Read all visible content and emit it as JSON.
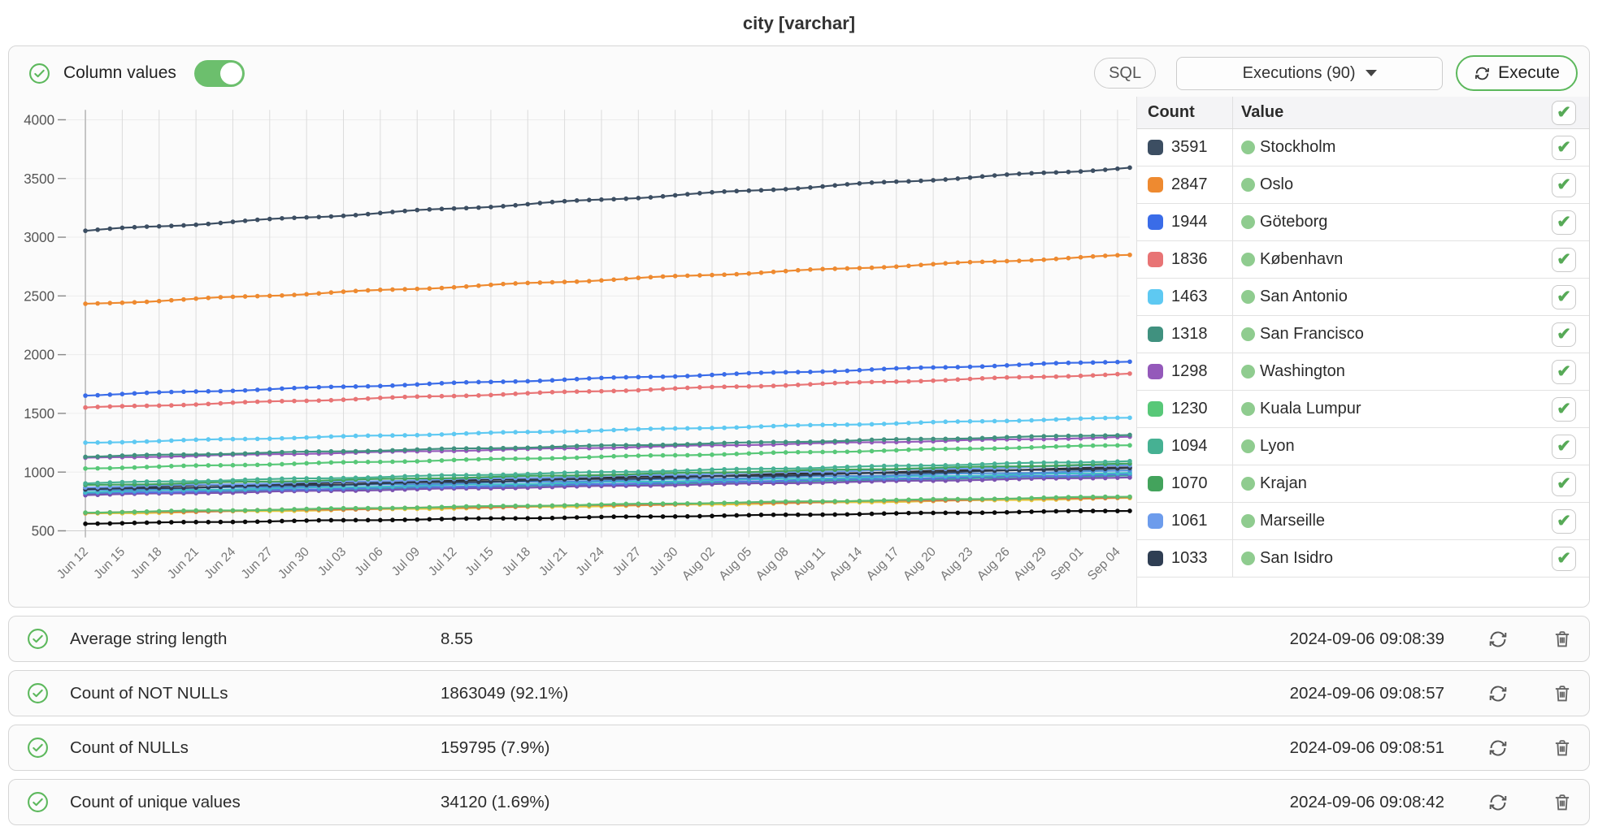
{
  "page_title": "city [varchar]",
  "panel": {
    "header": {
      "title": "Column values",
      "toggle_on": true
    },
    "buttons": {
      "sql": "SQL",
      "executions": "Executions (90)",
      "execute": "Execute"
    }
  },
  "legend": {
    "headers": {
      "count": "Count",
      "value": "Value"
    },
    "header_checkbox_checked": true,
    "rows": [
      {
        "count": 3591,
        "value": "Stockholm",
        "color": "#3c4e62",
        "checked": true
      },
      {
        "count": 2847,
        "value": "Oslo",
        "color": "#ee8a30",
        "checked": true
      },
      {
        "count": 1944,
        "value": "Göteborg",
        "color": "#3a6ce8",
        "checked": true
      },
      {
        "count": 1836,
        "value": "København",
        "color": "#e87475",
        "checked": true
      },
      {
        "count": 1463,
        "value": "San Antonio",
        "color": "#5ec9f2",
        "checked": true
      },
      {
        "count": 1318,
        "value": "San Francisco",
        "color": "#40917f",
        "checked": true
      },
      {
        "count": 1298,
        "value": "Washington",
        "color": "#9459ba",
        "checked": true
      },
      {
        "count": 1230,
        "value": "Kuala Lumpur",
        "color": "#58c878",
        "checked": true
      },
      {
        "count": 1094,
        "value": "Lyon",
        "color": "#46b193",
        "checked": true
      },
      {
        "count": 1070,
        "value": "Krajan",
        "color": "#43a35c",
        "checked": true
      },
      {
        "count": 1061,
        "value": "Marseille",
        "color": "#6d9cec",
        "checked": true
      },
      {
        "count": 1033,
        "value": "San Isidro",
        "color": "#2f3e53",
        "checked": true
      }
    ]
  },
  "chart_data": {
    "type": "line",
    "title": "",
    "xlabel": "",
    "ylabel": "",
    "ylim": [
      500,
      4000
    ],
    "y_ticks": [
      500,
      1000,
      1500,
      2000,
      2500,
      3000,
      3500,
      4000
    ],
    "grid": true,
    "markers": true,
    "legend_position": "right",
    "x_tick_labels": [
      "Jun 12",
      "Jun 15",
      "Jun 18",
      "Jun 21",
      "Jun 24",
      "Jun 27",
      "Jun 30",
      "Jul 03",
      "Jul 06",
      "Jul 09",
      "Jul 12",
      "Jul 15",
      "Jul 18",
      "Jul 21",
      "Jul 24",
      "Jul 27",
      "Jul 30",
      "Aug 02",
      "Aug 05",
      "Aug 08",
      "Aug 11",
      "Aug 14",
      "Aug 17",
      "Aug 20",
      "Aug 23",
      "Aug 26",
      "Aug 29",
      "Sep 01",
      "Sep 04"
    ],
    "ticks_every_n_points": 3,
    "points_per_series": 86,
    "series_note": "daily execution counts rising roughly linearly from start to end value",
    "series": [
      {
        "name": "Stockholm",
        "color": "#3c4e62",
        "start": 3055,
        "end": 3591
      },
      {
        "name": "Oslo",
        "color": "#ee8a30",
        "start": 2430,
        "end": 2847
      },
      {
        "name": "Göteborg",
        "color": "#3a6ce8",
        "start": 1655,
        "end": 1944
      },
      {
        "name": "København",
        "color": "#e87475",
        "start": 1548,
        "end": 1836
      },
      {
        "name": "San Antonio",
        "color": "#5ec9f2",
        "start": 1250,
        "end": 1463
      },
      {
        "name": "San Francisco",
        "color": "#40917f",
        "start": 1132,
        "end": 1318
      },
      {
        "name": "Washington",
        "color": "#9459ba",
        "start": 1120,
        "end": 1298
      },
      {
        "name": "Kuala Lumpur",
        "color": "#58c878",
        "start": 1032,
        "end": 1230
      },
      {
        "name": "Lyon",
        "color": "#46b193",
        "start": 905,
        "end": 1094
      },
      {
        "name": "Krajan",
        "color": "#43a35c",
        "start": 888,
        "end": 1070
      },
      {
        "name": "Marseille",
        "color": "#6d9cec",
        "start": 872,
        "end": 1061
      },
      {
        "name": "San Isidro",
        "color": "#2f3e53",
        "start": 852,
        "end": 1033
      },
      {
        "name": "",
        "color": "#4f8fd8",
        "start": 846,
        "end": 1012
      },
      {
        "name": "",
        "color": "#3fbfc5",
        "start": 832,
        "end": 996
      },
      {
        "name": "",
        "color": "#5577e0",
        "start": 820,
        "end": 982
      },
      {
        "name": "",
        "color": "#2d2d2d",
        "start": 866,
        "end": 1040
      },
      {
        "name": "",
        "color": "#7a52b0",
        "start": 806,
        "end": 956
      },
      {
        "name": "",
        "color": "#3e9e9e",
        "start": 814,
        "end": 968
      },
      {
        "name": "",
        "color": "#5cbf6e",
        "start": 656,
        "end": 792
      },
      {
        "name": "",
        "color": "#d96f4a",
        "start": 652,
        "end": 786
      },
      {
        "name": "",
        "color": "#e3c93e",
        "start": 646,
        "end": 778
      },
      {
        "name": "",
        "color": "#0a0a0a",
        "start": 562,
        "end": 672
      }
    ]
  },
  "metrics": [
    {
      "label": "Average string length",
      "value": "8.55",
      "timestamp": "2024-09-06 09:08:39"
    },
    {
      "label": "Count of NOT NULLs",
      "value": "1863049 (92.1%)",
      "timestamp": "2024-09-06 09:08:57"
    },
    {
      "label": "Count of NULLs",
      "value": "159795 (7.9%)",
      "timestamp": "2024-09-06 09:08:51"
    },
    {
      "label": "Count of unique values",
      "value": "34120 (1.69%)",
      "timestamp": "2024-09-06 09:08:42"
    }
  ],
  "colors": {
    "accent_green": "#5cb85c",
    "toggle_green": "#6cbf6d",
    "legend_dot_green": "#8fcc8f",
    "grid_line": "#dcdcdc"
  }
}
